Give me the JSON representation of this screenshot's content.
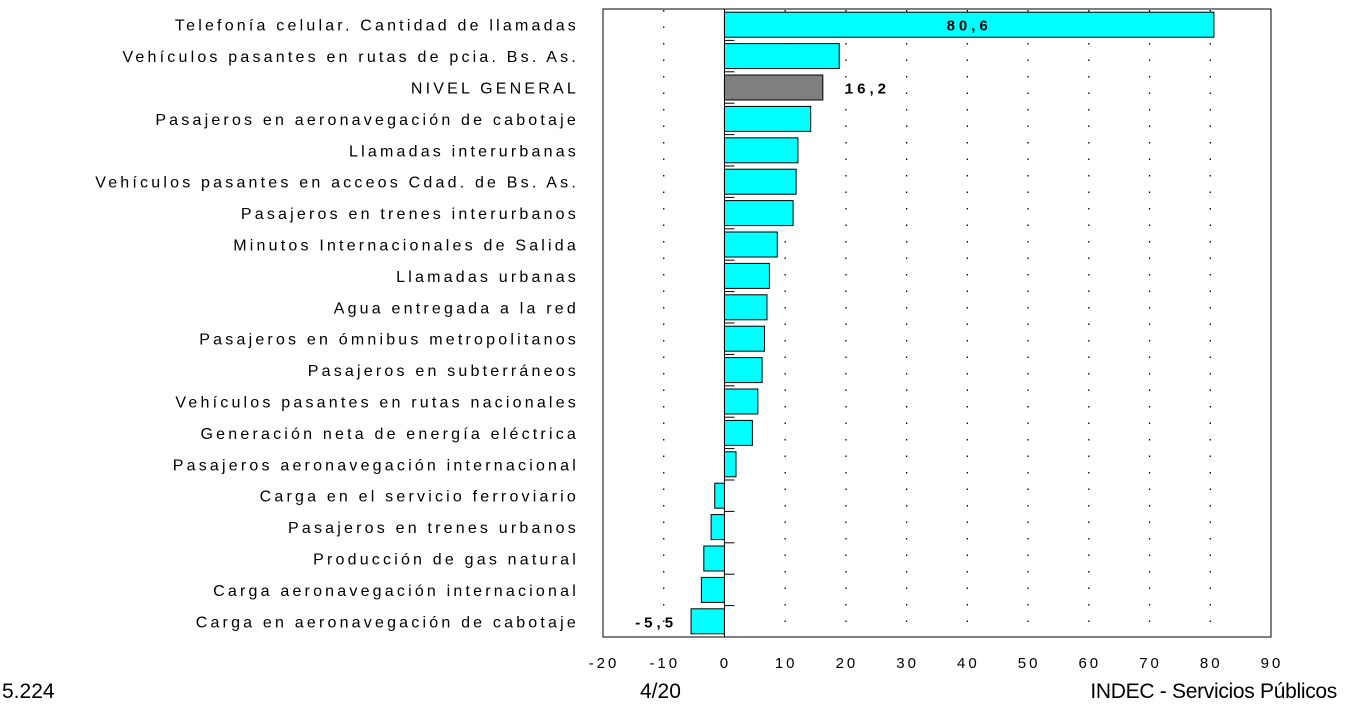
{
  "chart_data": {
    "type": "bar",
    "orientation": "horizontal",
    "categories": [
      "Telefonía celular. Cantidad de llamadas",
      "Vehículos pasantes en rutas de pcia. Bs. As.",
      "NIVEL GENERAL",
      "Pasajeros en aeronavegación de cabotaje",
      "Llamadas interurbanas",
      "Vehículos pasantes en acceos Cdad. de Bs. As.",
      "Pasajeros en trenes interurbanos",
      "Minutos Internacionales de Salida",
      "Llamadas urbanas",
      "Agua entregada a la red",
      "Pasajeros en ómnibus metropolitanos",
      "Pasajeros en subterráneos",
      "Vehículos pasantes en rutas nacionales",
      "Generación neta de energía eléctrica",
      "Pasajeros aeronavegación internacional",
      "Carga en el servicio ferroviario",
      "Pasajeros en trenes urbanos",
      "Producción de gas natural",
      "Carga aeronavegación internacional",
      "Carga en aeronavegación de cabotaje"
    ],
    "values": [
      80.6,
      18.9,
      16.2,
      14.2,
      12.1,
      11.8,
      11.3,
      8.7,
      7.4,
      7.0,
      6.6,
      6.2,
      5.5,
      4.6,
      1.9,
      -1.6,
      -2.2,
      -3.4,
      -3.8,
      -5.5
    ],
    "highlight_category": "NIVEL GENERAL",
    "data_labels": [
      {
        "category": "Telefonía celular. Cantidad de llamadas",
        "text": "80,6"
      },
      {
        "category": "NIVEL GENERAL",
        "text": "16,2"
      },
      {
        "category": "Carga en aeronavegación de cabotaje",
        "text": "-5,5"
      }
    ],
    "xlim": [
      -20,
      90
    ],
    "xticks": [
      -20,
      -10,
      0,
      10,
      20,
      30,
      40,
      50,
      60,
      70,
      80,
      90
    ],
    "xtick_labels": [
      "-20",
      "-10",
      "0",
      "10",
      "20",
      "30",
      "40",
      "50",
      "60",
      "70",
      "80",
      "90"
    ],
    "grid": "vertical dotted",
    "colors": {
      "bar": "#00FFFF",
      "highlight": "#808080",
      "outline": "#000000"
    },
    "title": "",
    "xlabel": "",
    "ylabel": ""
  },
  "footer": {
    "left": "5.224",
    "center": "4/20",
    "right": "INDEC - Servicios Públicos"
  }
}
